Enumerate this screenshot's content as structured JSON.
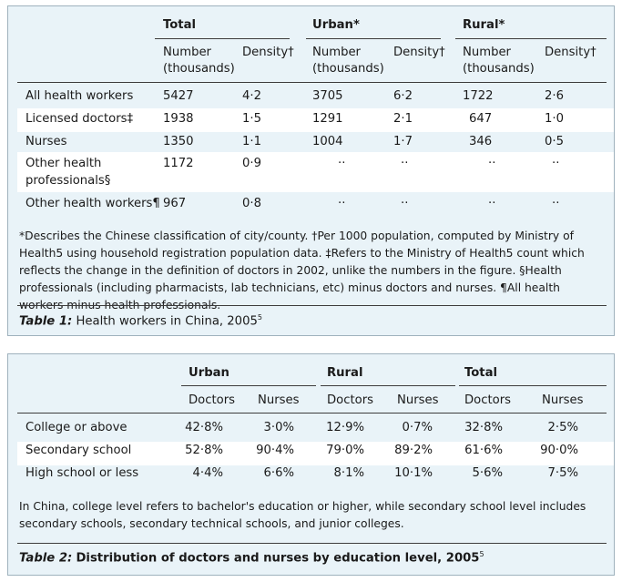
{
  "table1": {
    "groups": [
      "Total",
      "Urban*",
      "Rural*"
    ],
    "subheaders": {
      "number_line1": "Number",
      "number_line2": "(thousands)",
      "density": "Density†"
    },
    "rows": [
      {
        "label": "All health workers",
        "values": [
          "5427",
          "4·2",
          "3705",
          "6·2",
          "1722",
          "2·6"
        ]
      },
      {
        "label": "Licensed doctors‡",
        "values": [
          "1938",
          "1·5",
          "1291",
          "2·1",
          "647",
          "1·0"
        ]
      },
      {
        "label": "Nurses",
        "values": [
          "1350",
          "1·1",
          "1004",
          "1·7",
          "346",
          "0·5"
        ]
      },
      {
        "label_line1": "Other health",
        "label_line2": "professionals§",
        "values": [
          "1172",
          "0·9",
          "··",
          "··",
          "··",
          "··"
        ]
      },
      {
        "label": "Other health workers¶",
        "values": [
          "967",
          "0·8",
          "··",
          "··",
          "··",
          "··"
        ]
      }
    ],
    "footnote": "*Describes the Chinese classification of city/county. †Per 1000 population, computed by Ministry of Health5 using household registration population data. ‡Refers to the Ministry of Health5 count which reflects the change in the definition of doctors in 2002, unlike the numbers in the figure. §Health professionals (including pharmacists, lab technicians, etc) minus doctors and nurses. ¶All health workers minus health professionals.",
    "caption_label": "Table 1:",
    "caption_text": "Health workers in China, 2005",
    "caption_ref": "5"
  },
  "table2": {
    "groups": [
      "Urban",
      "Rural",
      "Total"
    ],
    "subheaders": [
      "Doctors",
      "Nurses",
      "Doctors",
      "Nurses",
      "Doctors",
      "Nurses"
    ],
    "rows": [
      {
        "label": "College or above",
        "values": [
          "42·8%",
          "3·0%",
          "12·9%",
          "0·7%",
          "32·8%",
          "2·5%"
        ]
      },
      {
        "label": "Secondary school",
        "values": [
          "52·8%",
          "90·4%",
          "79·0%",
          "89·2%",
          "61·6%",
          "90·0%"
        ]
      },
      {
        "label": "High school or less",
        "values": [
          "4·4%",
          "6·6%",
          "8·1%",
          "10·1%",
          "5·6%",
          "7·5%"
        ]
      }
    ],
    "footnote": "In China, college level refers to bachelor's education or higher, while secondary school level includes secondary schools, secondary technical schools, and junior colleges.",
    "caption_label": "Table 2:",
    "caption_text": "Distribution of doctors and nurses by education level, 2005",
    "caption_ref": "5"
  }
}
